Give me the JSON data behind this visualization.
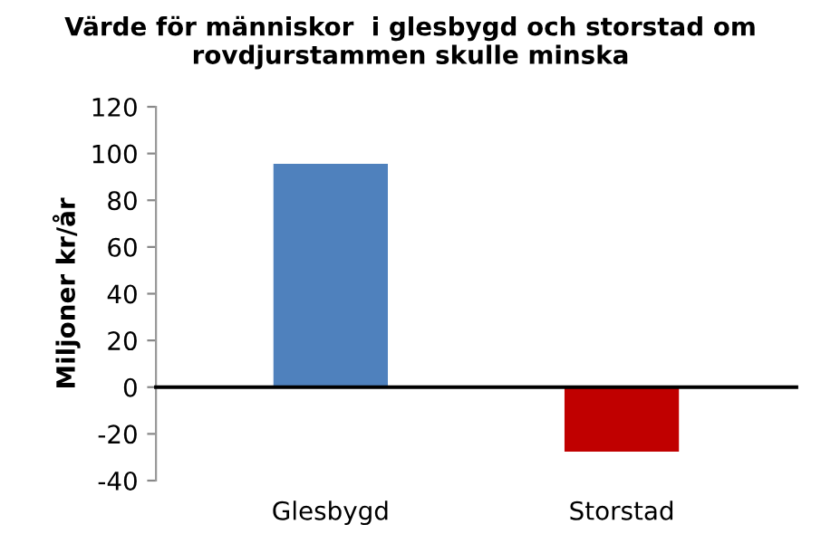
{
  "chart_data": {
    "type": "bar",
    "title": "Värde för människor  i glesbygd och storstad om rovdjurstammen skulle minska",
    "ylabel": "Miljoner kr/år",
    "categories": [
      "Glesbygd",
      "Storstad"
    ],
    "values": [
      96,
      -28
    ],
    "colors": [
      "#4f81bd",
      "#c00000"
    ],
    "ylim": [
      -40,
      120
    ],
    "yticks": [
      -40,
      -20,
      0,
      20,
      40,
      60,
      80,
      100,
      120
    ],
    "legend": false
  }
}
